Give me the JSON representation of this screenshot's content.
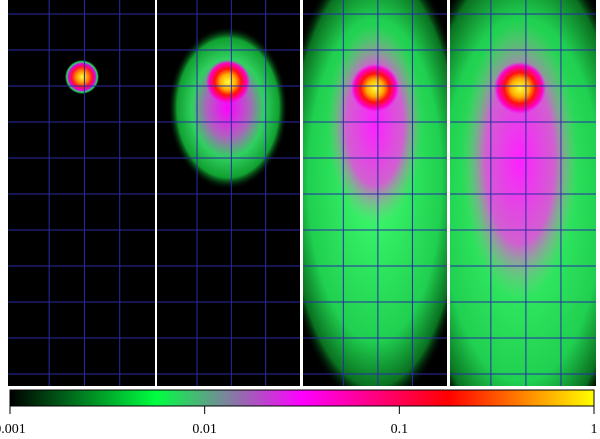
{
  "chart_data": {
    "type": "heatmap",
    "colorbar": {
      "zlim": [
        0.001,
        1
      ],
      "zticks": [
        0.001,
        0.01,
        0.1,
        1
      ],
      "log": true,
      "colormap": [
        "#000000",
        "#00ff40",
        "#ff00ff",
        "#ff0000",
        "#ffff00"
      ]
    }
  }
}
